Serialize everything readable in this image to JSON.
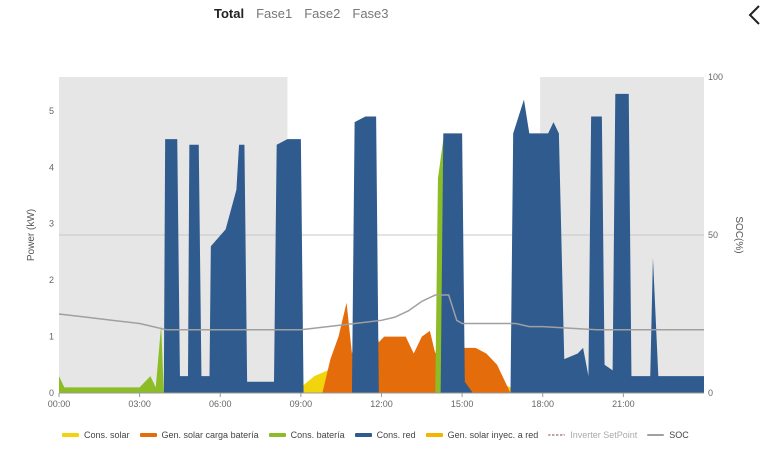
{
  "tabs": [
    {
      "label": "Total",
      "active": true
    },
    {
      "label": "Fase1",
      "active": false
    },
    {
      "label": "Fase2",
      "active": false
    },
    {
      "label": "Fase3",
      "active": false
    }
  ],
  "chart_data": {
    "type": "area",
    "y_left_label": "Power (kW)",
    "y_right_label": "SOC(%)",
    "x_range_hours": [
      0,
      24
    ],
    "y_left_range": [
      0,
      5.6
    ],
    "y_right_range": [
      0,
      100
    ],
    "x_ticks": [
      "00:00",
      "03:00",
      "06:00",
      "09:00",
      "12:00",
      "15:00",
      "18:00",
      "21:00"
    ],
    "y_left_ticks": [
      "0",
      "1",
      "2",
      "3",
      "4",
      "5"
    ],
    "y_right_ticks": [
      "0",
      "50",
      "100"
    ],
    "shaded_bands_hours": [
      [
        0,
        8.5
      ],
      [
        17.9,
        24
      ]
    ],
    "series": [
      {
        "name": "Cons. solar",
        "color": "#f2d40c",
        "points": [
          [
            8.5,
            0
          ],
          [
            9.0,
            0.1
          ],
          [
            9.5,
            0.3
          ],
          [
            10.0,
            0.4
          ],
          [
            10.3,
            0.4
          ],
          [
            10.8,
            0.5
          ],
          [
            11.2,
            0.6
          ],
          [
            11.8,
            0.6
          ],
          [
            12.0,
            0.4
          ],
          [
            12.5,
            0.3
          ],
          [
            13.0,
            0.5
          ],
          [
            13.5,
            0.6
          ],
          [
            14.0,
            0.7
          ],
          [
            14.3,
            0.6
          ],
          [
            14.8,
            0.5
          ],
          [
            15.3,
            0.4
          ],
          [
            15.8,
            0.3
          ],
          [
            16.3,
            0.2
          ],
          [
            16.8,
            0.1
          ],
          [
            17.2,
            0
          ]
        ]
      },
      {
        "name": "Gen. solar carga batería",
        "color": "#e46c0a",
        "points": [
          [
            9.8,
            0
          ],
          [
            10.1,
            0.6
          ],
          [
            10.4,
            1.0
          ],
          [
            10.7,
            1.6
          ],
          [
            10.9,
            0.7
          ],
          [
            11.2,
            1.2
          ],
          [
            11.6,
            1.5
          ],
          [
            11.9,
            0.9
          ],
          [
            12.1,
            1.0
          ],
          [
            12.5,
            1.0
          ],
          [
            12.9,
            1.0
          ],
          [
            13.2,
            0.7
          ],
          [
            13.5,
            1.0
          ],
          [
            13.8,
            1.1
          ],
          [
            14.0,
            0.7
          ],
          [
            14.3,
            1.2
          ],
          [
            14.6,
            0.9
          ],
          [
            15.0,
            0.8
          ],
          [
            15.5,
            0.8
          ],
          [
            15.9,
            0.7
          ],
          [
            16.3,
            0.5
          ],
          [
            16.6,
            0.2
          ],
          [
            16.8,
            0
          ]
        ]
      },
      {
        "name": "Cons. batería",
        "color": "#8cbd26",
        "points": [
          [
            0,
            0.3
          ],
          [
            0.2,
            0.1
          ],
          [
            1.0,
            0.1
          ],
          [
            2.0,
            0.1
          ],
          [
            3.0,
            0.1
          ],
          [
            3.4,
            0.3
          ],
          [
            3.6,
            0.1
          ],
          [
            3.8,
            1.2
          ],
          [
            3.9,
            0
          ],
          [
            14.0,
            0
          ],
          [
            14.1,
            3.8
          ],
          [
            14.3,
            4.5
          ],
          [
            14.5,
            4.2
          ],
          [
            14.6,
            1.2
          ],
          [
            14.7,
            0
          ],
          [
            17.9,
            0
          ],
          [
            18.1,
            0.3
          ],
          [
            18.4,
            0.3
          ],
          [
            18.5,
            0
          ]
        ]
      },
      {
        "name": "Cons. red",
        "color": "#2f5b8f",
        "points": [
          [
            3.9,
            0
          ],
          [
            3.95,
            4.5
          ],
          [
            4.4,
            4.5
          ],
          [
            4.5,
            0.3
          ],
          [
            4.8,
            0.3
          ],
          [
            4.85,
            4.4
          ],
          [
            5.2,
            4.4
          ],
          [
            5.3,
            0.3
          ],
          [
            5.6,
            0.3
          ],
          [
            5.65,
            2.6
          ],
          [
            6.2,
            2.9
          ],
          [
            6.6,
            3.6
          ],
          [
            6.7,
            4.4
          ],
          [
            6.9,
            4.4
          ],
          [
            7.0,
            0.2
          ],
          [
            8.0,
            0.2
          ],
          [
            8.1,
            4.4
          ],
          [
            8.5,
            4.5
          ],
          [
            9.0,
            4.5
          ],
          [
            9.1,
            0
          ],
          [
            10.9,
            0
          ],
          [
            11.0,
            4.8
          ],
          [
            11.4,
            4.9
          ],
          [
            11.8,
            4.9
          ],
          [
            11.9,
            0
          ],
          [
            14.2,
            0
          ],
          [
            14.3,
            4.6
          ],
          [
            14.7,
            4.6
          ],
          [
            15.0,
            4.6
          ],
          [
            15.1,
            0.2
          ],
          [
            15.4,
            0
          ],
          [
            16.8,
            0
          ],
          [
            16.9,
            4.6
          ],
          [
            17.3,
            5.2
          ],
          [
            17.5,
            4.6
          ],
          [
            18.2,
            4.6
          ],
          [
            18.4,
            4.8
          ],
          [
            18.6,
            4.6
          ],
          [
            18.8,
            0.6
          ],
          [
            19.3,
            0.7
          ],
          [
            19.5,
            0.8
          ],
          [
            19.7,
            0.3
          ],
          [
            19.8,
            4.9
          ],
          [
            20.2,
            4.9
          ],
          [
            20.3,
            0.5
          ],
          [
            20.6,
            0.4
          ],
          [
            20.7,
            5.3
          ],
          [
            21.2,
            5.3
          ],
          [
            21.3,
            0.3
          ],
          [
            22.0,
            0.3
          ],
          [
            22.1,
            2.4
          ],
          [
            22.3,
            0.3
          ],
          [
            24.0,
            0.3
          ],
          [
            24.0,
            0
          ]
        ]
      },
      {
        "name": "Gen. solar inyec. a red",
        "color": "#f5b400",
        "points": []
      },
      {
        "name": "Inverter SetPoint",
        "color": "#c8a0a0",
        "dotted": true,
        "points": []
      },
      {
        "name": "SOC",
        "color": "#a0a0a0",
        "axis": "right",
        "points": [
          [
            0,
            25
          ],
          [
            1,
            24
          ],
          [
            2,
            23
          ],
          [
            3,
            22
          ],
          [
            3.5,
            21
          ],
          [
            4,
            20
          ],
          [
            9,
            20
          ],
          [
            10,
            21
          ],
          [
            11,
            22
          ],
          [
            12,
            23
          ],
          [
            12.5,
            24
          ],
          [
            13,
            26
          ],
          [
            13.5,
            29
          ],
          [
            14,
            31
          ],
          [
            14.5,
            31
          ],
          [
            14.8,
            23
          ],
          [
            15,
            22
          ],
          [
            16,
            22
          ],
          [
            17,
            22
          ],
          [
            17.5,
            21
          ],
          [
            18,
            21
          ],
          [
            20,
            20
          ],
          [
            24,
            20
          ]
        ]
      }
    ]
  }
}
